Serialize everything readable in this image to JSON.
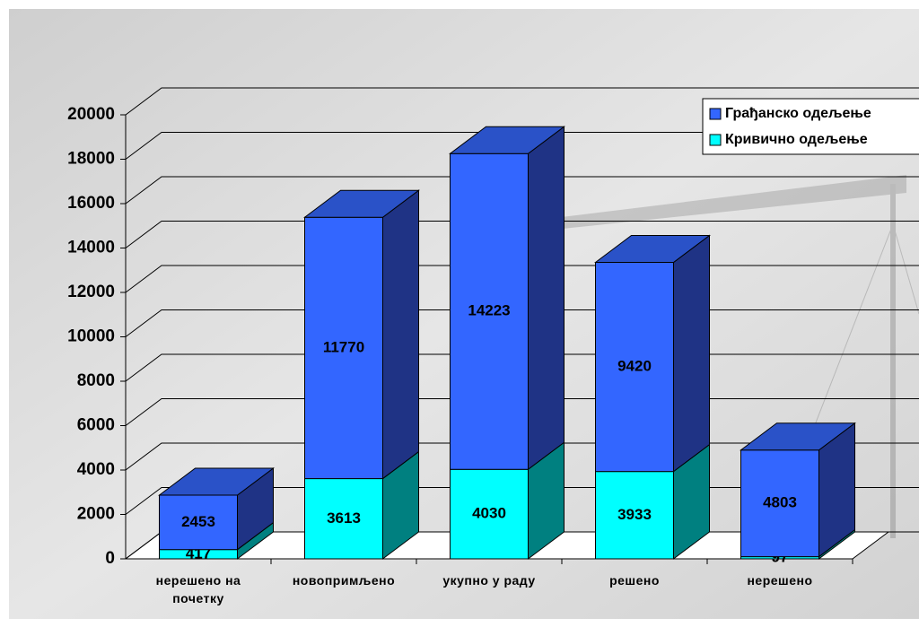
{
  "chart_data": {
    "type": "bar3d_stacked",
    "categories": [
      "нерешено на почетку",
      "новопримљено",
      "укупно у раду",
      "решено",
      "нерешено"
    ],
    "series": [
      {
        "name": "Кривично одељење",
        "color": "#00ffff",
        "side_color": "#008080",
        "values": [
          417,
          3613,
          4030,
          3933,
          97
        ]
      },
      {
        "name": "Грађанско одељење",
        "color": "#3366ff",
        "side_color": "#1f3385",
        "values": [
          2453,
          11770,
          14223,
          9420,
          4803
        ]
      }
    ],
    "ylim": [
      0,
      20000
    ],
    "yticks": [
      0,
      2000,
      4000,
      6000,
      8000,
      10000,
      12000,
      14000,
      16000,
      18000,
      20000
    ],
    "grid": true,
    "legend": "top-right"
  }
}
